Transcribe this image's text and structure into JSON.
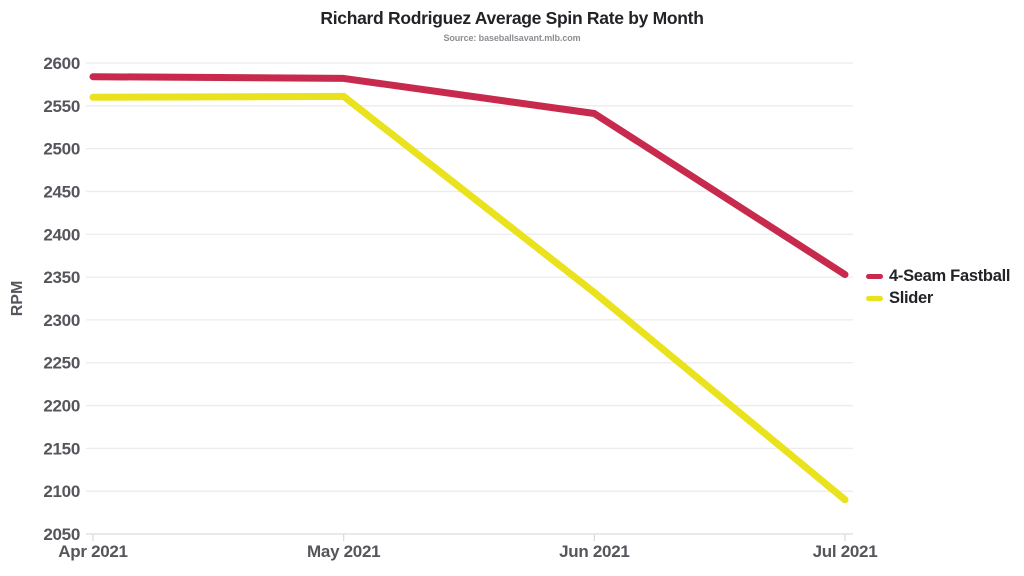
{
  "chart_data": {
    "type": "line",
    "title": "Richard Rodriguez Average Spin Rate by Month",
    "subtitle": "Source: baseballsavant.mlb.com",
    "xlabel": "",
    "ylabel": "RPM",
    "categories": [
      "Apr 2021",
      "May 2021",
      "Jun 2021",
      "Jul 2021"
    ],
    "series": [
      {
        "name": "4-Seam Fastball",
        "color": "#c72a4c",
        "values": [
          2584,
          2582,
          2541,
          2353
        ]
      },
      {
        "name": "Slider",
        "color": "#eae21d",
        "values": [
          2560,
          2561,
          2332,
          2090
        ]
      }
    ],
    "ylim": [
      2050,
      2600
    ],
    "ytick_step": 50,
    "grid": "horizontal",
    "legend_position": "right",
    "colors": {
      "title_text": "#222326",
      "subtitle_text": "#8d8d92",
      "axis_text": "#55565b",
      "gridline": "#ececec",
      "axis_line": "#dcdcdc"
    }
  }
}
